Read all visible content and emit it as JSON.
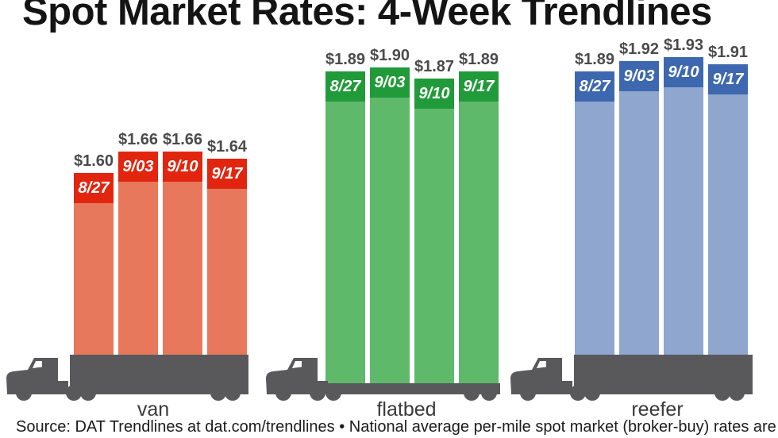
{
  "title": "Spot Market Rates: 4-Week Trendlines",
  "source_note": "Source: DAT Trendlines at dat.com/trendlines • National average per-mile spot market (broker-buy) rates are",
  "colors": {
    "van_cap": "#e2250e",
    "van_bar": "#e8785c",
    "flatbed_cap": "#219a39",
    "flatbed_bar": "#5eb96b",
    "reefer_cap": "#3d68af",
    "reefer_bar": "#8fa6cf",
    "truck": "#59595b",
    "price_label": "#4b4b4d",
    "title_text": "#141414",
    "background": "#ffffff"
  },
  "chart_data": {
    "type": "bar",
    "title": "Spot Market Rates: 4-Week Trendlines",
    "unit": "US dollars per mile",
    "weeks": [
      "8/27",
      "9/03",
      "9/10",
      "9/17"
    ],
    "groups": [
      {
        "label": "van",
        "values": [
          1.6,
          1.66,
          1.66,
          1.64
        ],
        "display_values": [
          "$1.60",
          "$1.66",
          "$1.66",
          "$1.64"
        ]
      },
      {
        "label": "flatbed",
        "values": [
          1.89,
          1.9,
          1.87,
          1.89
        ],
        "display_values": [
          "$1.89",
          "$1.90",
          "$1.87",
          "$1.89"
        ]
      },
      {
        "label": "reefer",
        "values": [
          1.89,
          1.92,
          1.93,
          1.91
        ],
        "display_values": [
          "$1.89",
          "$1.92",
          "$1.93",
          "$1.91"
        ]
      }
    ],
    "layout_hints": {
      "legend": "none",
      "grid": "off",
      "value_labels": "above each bar",
      "week_labels": "inside darker cap at top of each bar",
      "bars_rest_on": "truck illustrations (van box, flatbed deck, reefer box)"
    }
  }
}
